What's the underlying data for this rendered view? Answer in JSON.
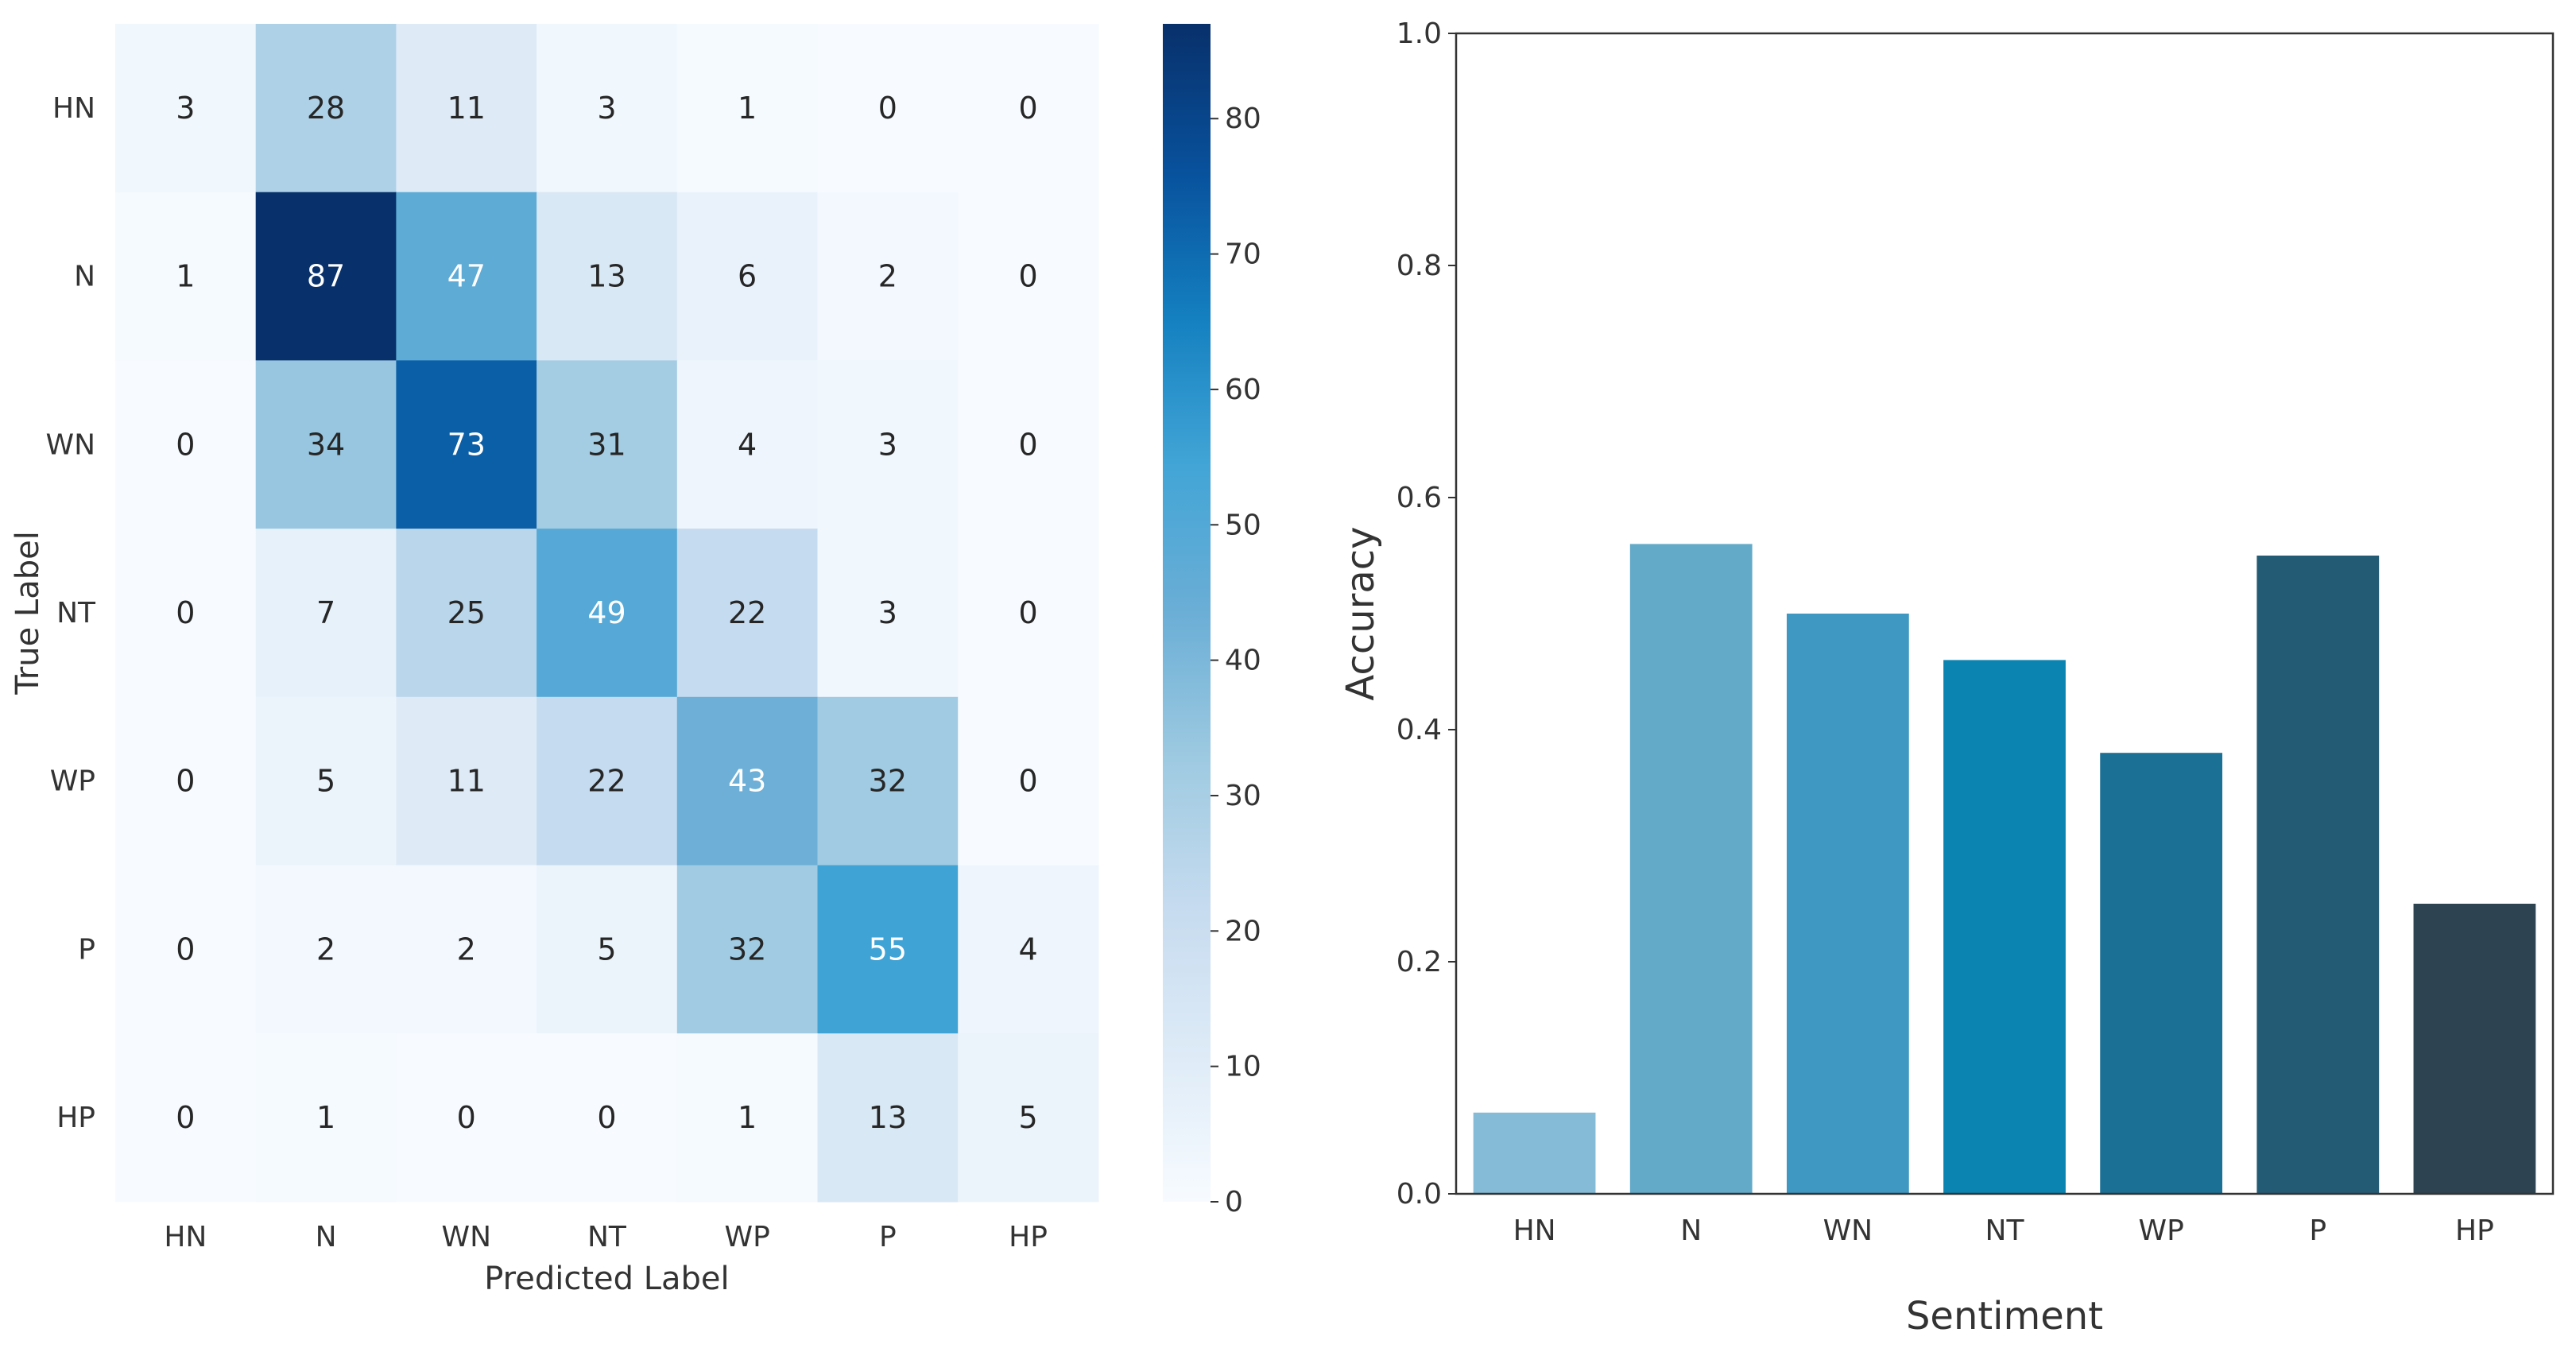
{
  "chart_data": [
    {
      "type": "heatmap",
      "title": "",
      "xlabel": "Predicted Label",
      "ylabel": "True Label",
      "row_labels": [
        "HN",
        "N",
        "WN",
        "NT",
        "WP",
        "P",
        "HP"
      ],
      "col_labels": [
        "HN",
        "N",
        "WN",
        "NT",
        "WP",
        "P",
        "HP"
      ],
      "values": [
        [
          3,
          28,
          11,
          3,
          1,
          0,
          0
        ],
        [
          1,
          87,
          47,
          13,
          6,
          2,
          0
        ],
        [
          0,
          34,
          73,
          31,
          4,
          3,
          0
        ],
        [
          0,
          7,
          25,
          49,
          22,
          3,
          0
        ],
        [
          0,
          5,
          11,
          22,
          43,
          32,
          0
        ],
        [
          0,
          2,
          2,
          5,
          32,
          55,
          4
        ],
        [
          0,
          1,
          0,
          0,
          1,
          13,
          5
        ]
      ],
      "colorbar": {
        "min": 0,
        "max": 87,
        "ticks": [
          0,
          10,
          20,
          30,
          40,
          50,
          60,
          70,
          80
        ],
        "colormap": "Blues"
      }
    },
    {
      "type": "bar",
      "title": "",
      "xlabel": "Sentiment",
      "ylabel": "Accuracy",
      "categories": [
        "HN",
        "N",
        "WN",
        "NT",
        "WP",
        "P",
        "HP"
      ],
      "values": [
        0.07,
        0.56,
        0.5,
        0.46,
        0.38,
        0.55,
        0.25
      ],
      "colors": [
        "#86bbd8",
        "#63a9c8",
        "#3f98c1",
        "#0b84b1",
        "#1b7096",
        "#245b74",
        "#2e4351"
      ],
      "ylim": [
        0.0,
        1.0
      ],
      "yticks": [
        "0.0",
        "0.2",
        "0.4",
        "0.6",
        "0.8",
        "1.0"
      ]
    }
  ]
}
